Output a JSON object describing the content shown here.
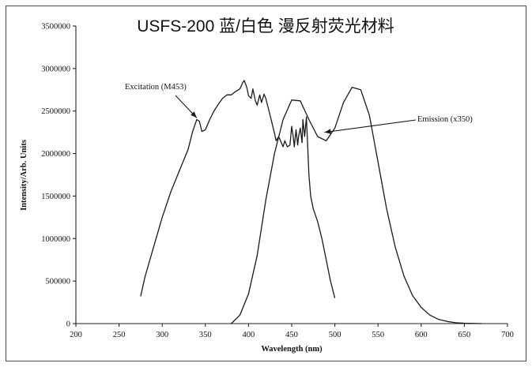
{
  "chart_data": {
    "type": "line",
    "title": "USFS-200 蓝/白色 漫反射荧光材料",
    "xlabel": "Wavelength (nm)",
    "ylabel": "Intensity/Arb. Units",
    "xlim": [
      200,
      700
    ],
    "ylim": [
      0,
      3500000
    ],
    "x_ticks": [
      "200",
      "250",
      "300",
      "350",
      "400",
      "450",
      "500",
      "550",
      "600",
      "650",
      "700"
    ],
    "y_ticks": [
      "0",
      "500000",
      "1000000",
      "1500000",
      "2000000",
      "2500000",
      "3000000",
      "3500000"
    ],
    "grid": false,
    "legend": "none",
    "annotations": [
      {
        "text": "Excitation (M453)",
        "series": 0,
        "points_to": [
          340,
          2420000
        ]
      },
      {
        "text": "Emission (x350)",
        "series": 1,
        "points_to": [
          488,
          2250000
        ]
      }
    ],
    "series": [
      {
        "name": "Excitation (M453)",
        "x": [
          275,
          280,
          290,
          300,
          310,
          320,
          330,
          335,
          340,
          343,
          346,
          350,
          355,
          360,
          365,
          370,
          375,
          380,
          385,
          390,
          393,
          395,
          398,
          400,
          403,
          405,
          408,
          410,
          413,
          415,
          418,
          420,
          425,
          430,
          432,
          435,
          440,
          442,
          445,
          448,
          450,
          452,
          453,
          455,
          457,
          458,
          460,
          462,
          463,
          465,
          467,
          468,
          470,
          472,
          475,
          480,
          485,
          490,
          495,
          500
        ],
        "y": [
          320000,
          550000,
          900000,
          1250000,
          1550000,
          1800000,
          2050000,
          2250000,
          2400000,
          2380000,
          2260000,
          2280000,
          2400000,
          2500000,
          2580000,
          2650000,
          2690000,
          2690000,
          2730000,
          2760000,
          2830000,
          2860000,
          2780000,
          2680000,
          2650000,
          2760000,
          2620000,
          2570000,
          2690000,
          2600000,
          2700000,
          2650000,
          2450000,
          2240000,
          2150000,
          2200000,
          2080000,
          2150000,
          2080000,
          2100000,
          2320000,
          2180000,
          2080000,
          2280000,
          2100000,
          2200000,
          2300000,
          2130000,
          2400000,
          2200000,
          2430000,
          2200000,
          1750000,
          1500000,
          1350000,
          1200000,
          1000000,
          750000,
          500000,
          300000
        ]
      },
      {
        "name": "Emission (x350)",
        "x": [
          380,
          390,
          400,
          410,
          420,
          430,
          440,
          450,
          460,
          470,
          480,
          490,
          500,
          510,
          520,
          530,
          540,
          550,
          560,
          570,
          580,
          590,
          600,
          610,
          620,
          630,
          640,
          650,
          660,
          670
        ],
        "y": [
          0,
          100000,
          350000,
          800000,
          1450000,
          2000000,
          2400000,
          2630000,
          2620000,
          2400000,
          2200000,
          2150000,
          2300000,
          2600000,
          2780000,
          2750000,
          2450000,
          1900000,
          1350000,
          900000,
          560000,
          330000,
          190000,
          100000,
          50000,
          25000,
          10000,
          5000,
          2000,
          0
        ]
      }
    ]
  }
}
